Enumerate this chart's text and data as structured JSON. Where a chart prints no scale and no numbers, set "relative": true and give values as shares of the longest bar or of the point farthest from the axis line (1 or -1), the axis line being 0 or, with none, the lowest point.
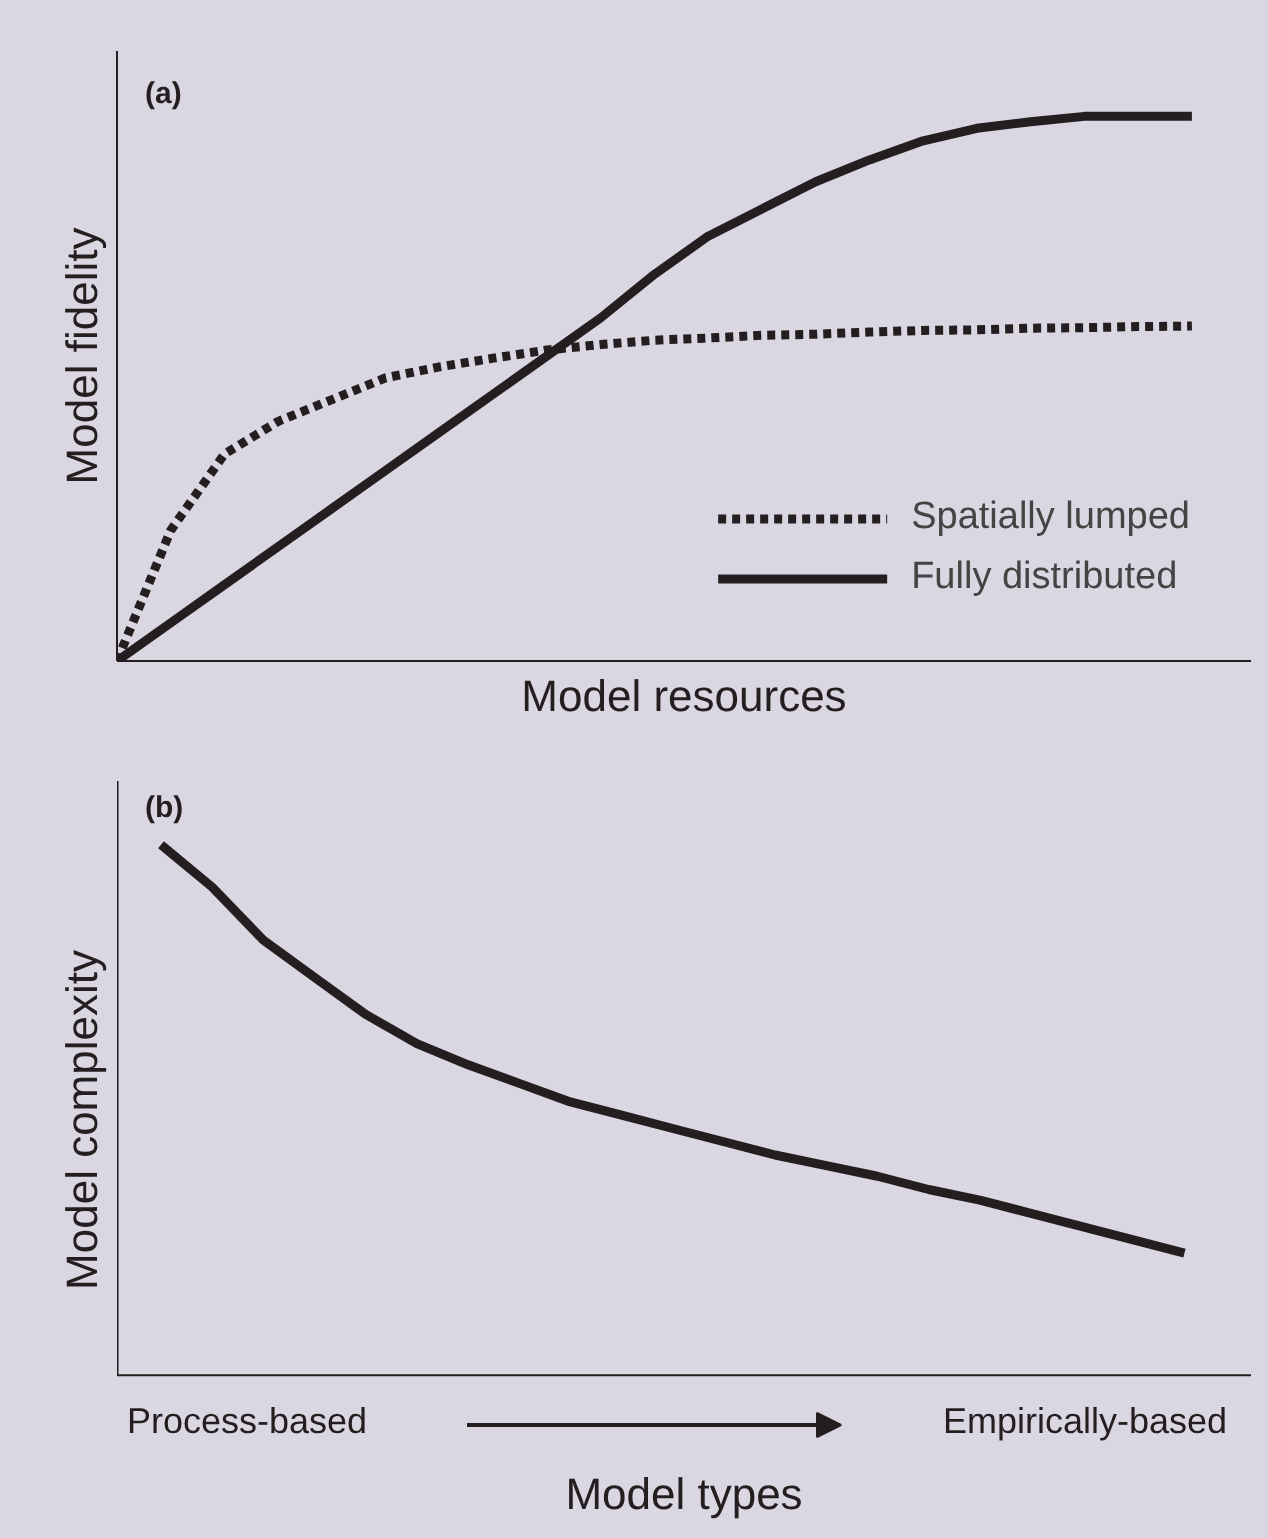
{
  "chart_data": [
    {
      "type": "line",
      "title": "(a)",
      "xlabel": "Model resources",
      "ylabel": "Model fidelity",
      "relative": true,
      "legend": "bottom right",
      "grid": false,
      "categories": [
        null,
        null,
        null,
        null,
        null,
        null,
        null,
        null,
        null,
        null,
        null,
        null,
        null,
        null,
        null,
        null,
        null,
        null,
        null,
        null,
        null
      ],
      "series": [
        {
          "name": "Spatially lumped",
          "color": "#231f20",
          "line_style": "dotted",
          "values": [
            0,
            0.24,
            0.38,
            0.44,
            0.48,
            0.52,
            0.54,
            0.556,
            0.571,
            0.581,
            0.589,
            0.593,
            0.598,
            0.6,
            0.604,
            0.607,
            0.608,
            0.611,
            0.612,
            0.614,
            0.615
          ]
        },
        {
          "name": "Fully distributed",
          "color": "#231f20",
          "line_style": "solid",
          "values": [
            0,
            0.07,
            0.14,
            0.21,
            0.28,
            0.35,
            0.42,
            0.49,
            0.56,
            0.63,
            0.71,
            0.78,
            0.83,
            0.88,
            0.92,
            0.955,
            0.978,
            0.99,
            1.0,
            1.0,
            1.0
          ]
        }
      ]
    },
    {
      "type": "line",
      "title": "(b)",
      "xlabel": "Model types",
      "ylabel": "Model complexity",
      "relative": true,
      "grid": false,
      "categories": [
        null,
        null,
        null,
        null,
        null,
        null,
        null,
        null,
        null,
        null,
        null,
        null,
        null,
        null,
        null,
        null,
        null,
        null,
        null,
        null,
        null
      ],
      "annotations": [
        "Process-based",
        "Empirically-based"
      ],
      "series": [
        {
          "color": "#231f20",
          "line_style": "solid",
          "values": [
            1.0,
            0.92,
            0.82,
            0.75,
            0.68,
            0.625,
            0.585,
            0.55,
            0.515,
            0.49,
            0.465,
            0.44,
            0.415,
            0.395,
            0.375,
            0.35,
            0.33,
            0.305,
            0.28,
            0.255,
            0.23
          ]
        }
      ]
    }
  ]
}
